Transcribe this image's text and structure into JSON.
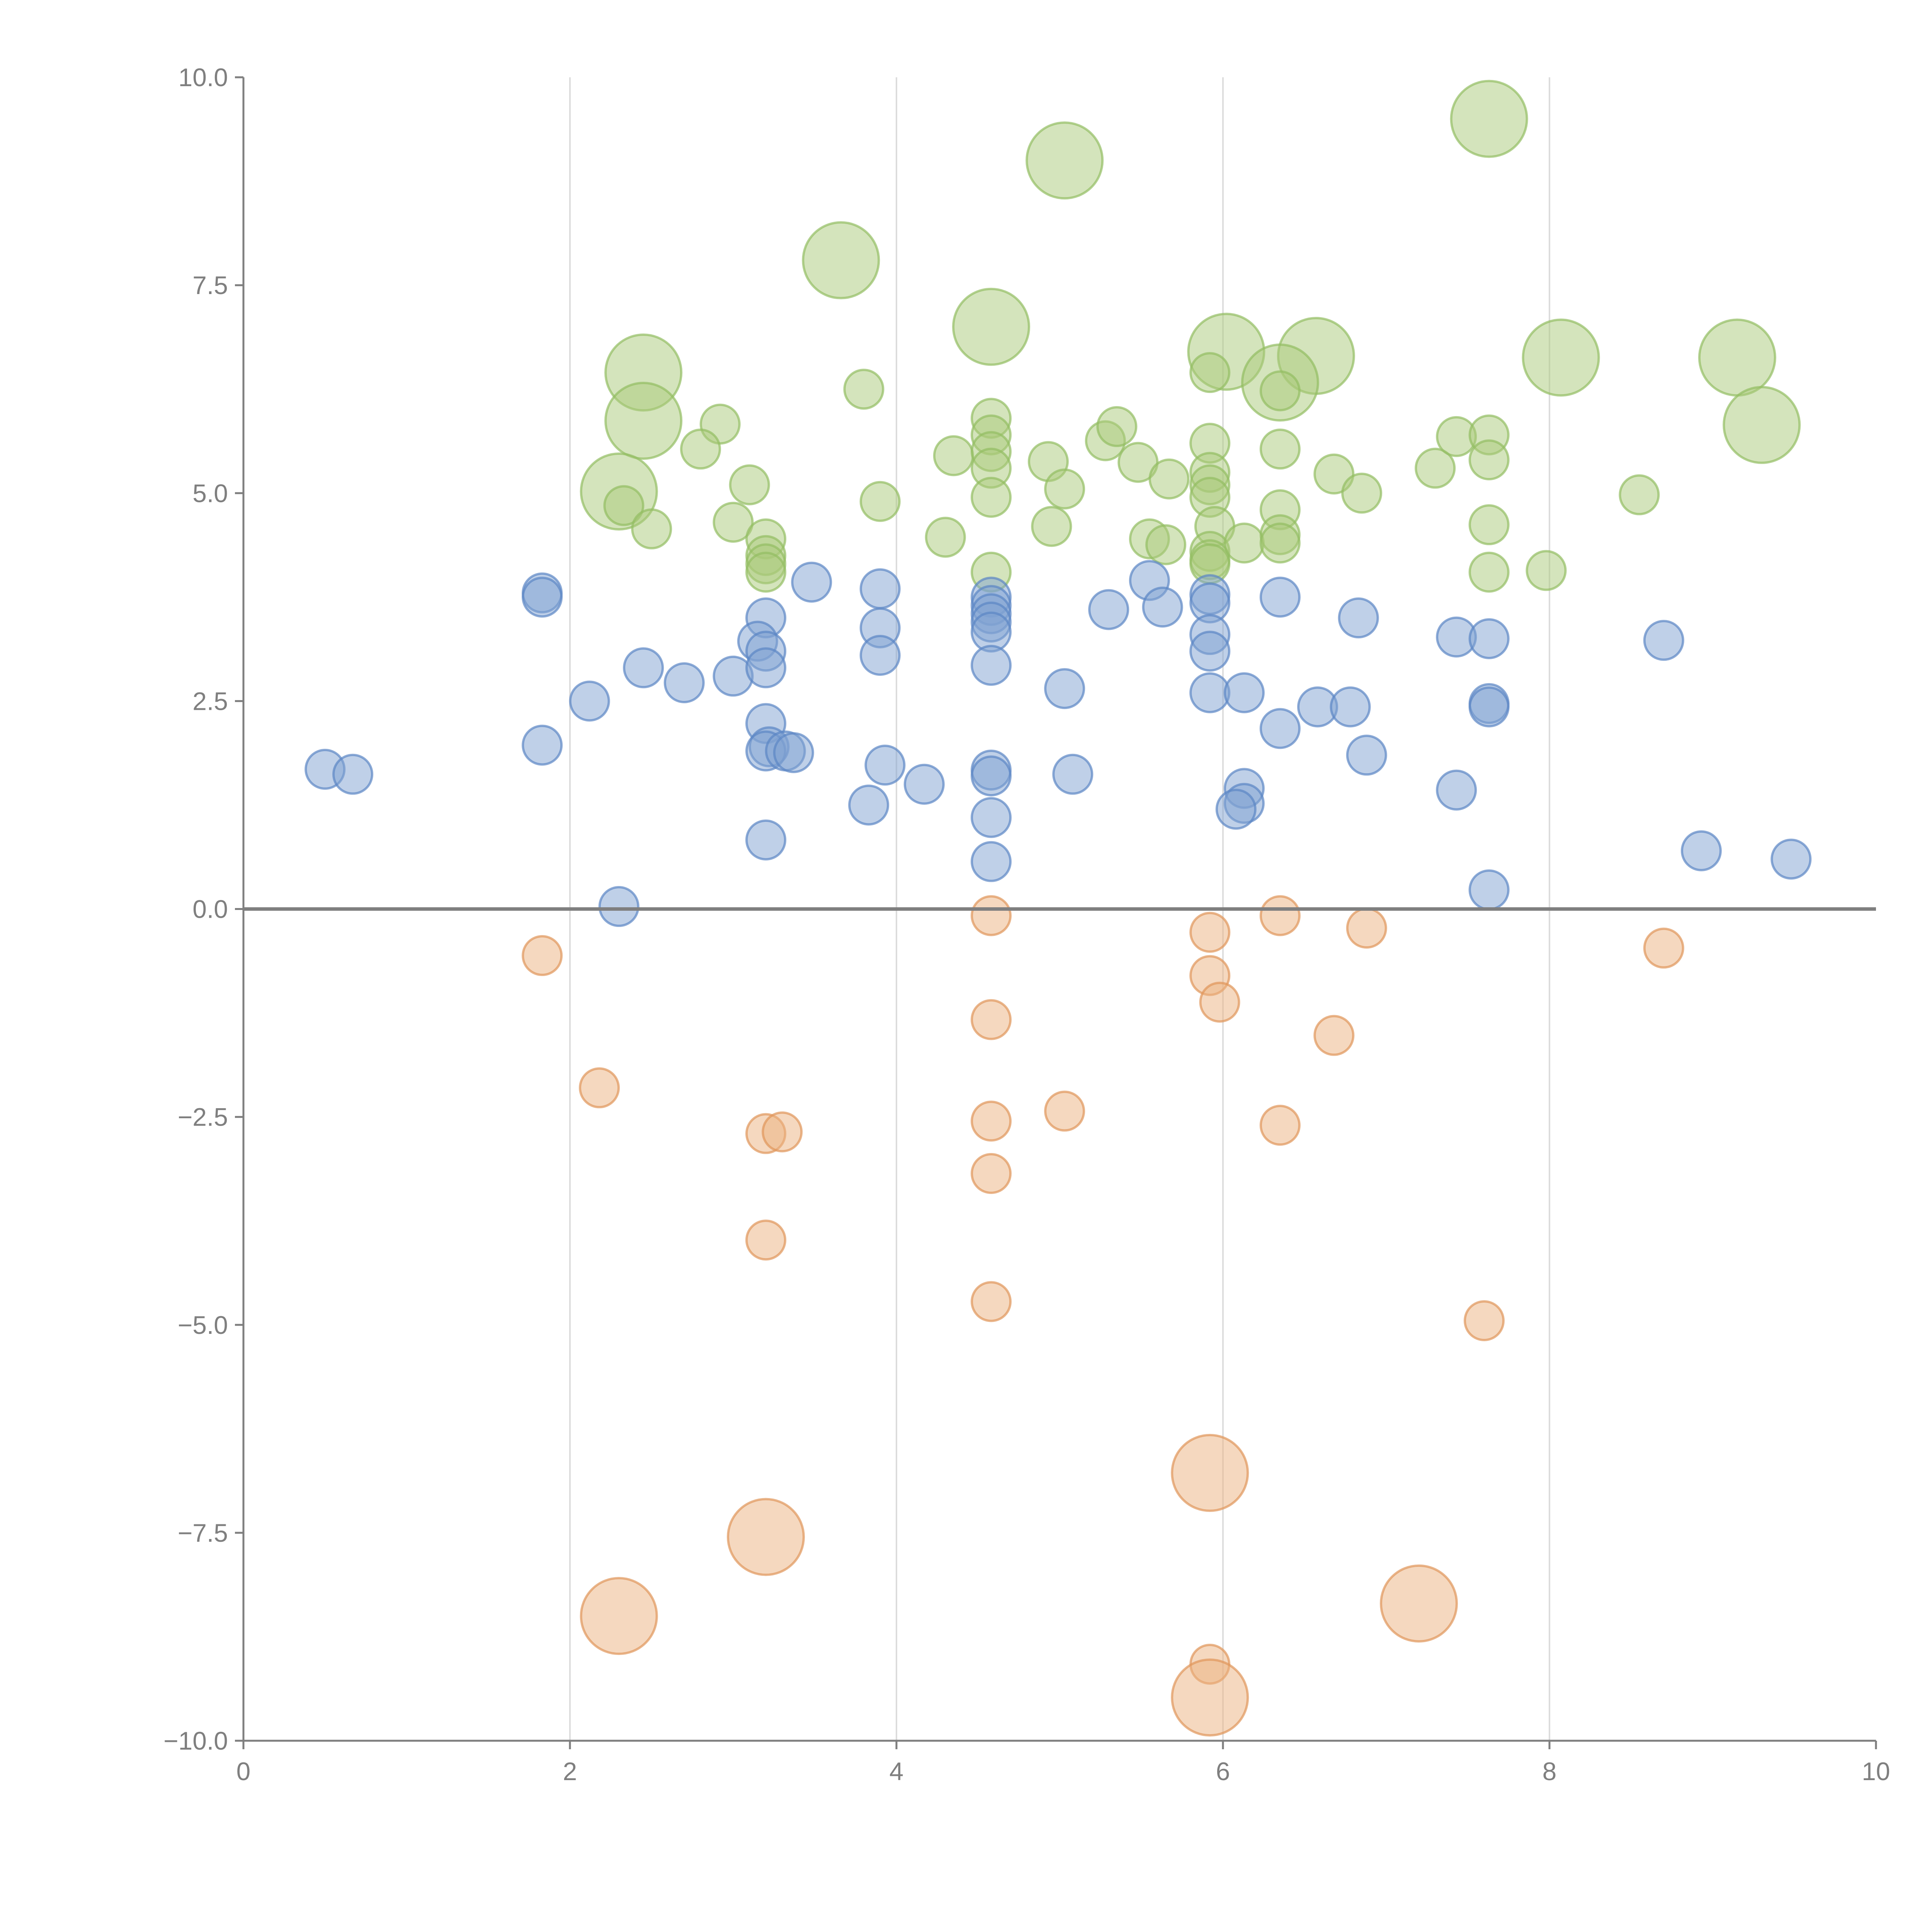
{
  "chart_data": {
    "type": "scatter",
    "xlim": [
      0,
      10
    ],
    "ylim": [
      -10,
      10
    ],
    "x_ticks": [
      0,
      2,
      4,
      6,
      8,
      10
    ],
    "y_ticks": [
      -10,
      -7.5,
      -5,
      -2.5,
      0,
      2.5,
      5,
      7.5,
      10
    ],
    "x_tick_labels": [
      "0",
      "2",
      "4",
      "6",
      "8",
      "10"
    ],
    "y_tick_labels": [
      "−10.0",
      "−7.5",
      "−5.0",
      "−2.5",
      "0.0",
      "2.5",
      "5.0",
      "7.5",
      "10.0"
    ],
    "vertical_grid_at": [
      2,
      4,
      6,
      8
    ],
    "reference_line_y": 0,
    "grid": true,
    "legend": "none",
    "series": [
      {
        "name": "green",
        "color": "#a9c97a",
        "stroke": "#93bd63",
        "points": [
          [
            7.63,
            9.5,
            "L"
          ],
          [
            5.03,
            9.0,
            "L"
          ],
          [
            3.66,
            7.8,
            "L"
          ],
          [
            4.58,
            7.0,
            "L"
          ],
          [
            2.45,
            6.45,
            "L"
          ],
          [
            2.45,
            5.87,
            "L"
          ],
          [
            2.3,
            5.02,
            "L"
          ],
          [
            6.02,
            6.7,
            "L"
          ],
          [
            6.57,
            6.65,
            "L"
          ],
          [
            6.35,
            6.33,
            "L"
          ],
          [
            8.07,
            6.63,
            "L"
          ],
          [
            9.15,
            6.63,
            "L"
          ],
          [
            9.3,
            5.82,
            "L"
          ],
          [
            3.8,
            6.25,
            "S"
          ],
          [
            2.92,
            5.83,
            "S"
          ],
          [
            2.8,
            5.53,
            "S"
          ],
          [
            3.1,
            5.1,
            "S"
          ],
          [
            2.33,
            4.85,
            "S"
          ],
          [
            2.5,
            4.57,
            "S"
          ],
          [
            3.0,
            4.65,
            "S"
          ],
          [
            3.2,
            4.45,
            "S"
          ],
          [
            3.2,
            4.25,
            "S"
          ],
          [
            3.2,
            4.15,
            "S"
          ],
          [
            3.2,
            4.05,
            "S"
          ],
          [
            3.9,
            4.9,
            "S"
          ],
          [
            4.35,
            5.45,
            "S"
          ],
          [
            4.3,
            4.47,
            "S"
          ],
          [
            4.58,
            5.9,
            "S"
          ],
          [
            4.58,
            5.7,
            "S"
          ],
          [
            4.58,
            5.5,
            "S"
          ],
          [
            4.58,
            5.3,
            "S"
          ],
          [
            4.58,
            4.95,
            "S"
          ],
          [
            4.58,
            4.05,
            "S"
          ],
          [
            4.93,
            5.38,
            "S"
          ],
          [
            5.03,
            5.05,
            "S"
          ],
          [
            4.95,
            4.6,
            "S"
          ],
          [
            5.28,
            5.63,
            "S"
          ],
          [
            5.35,
            5.8,
            "S"
          ],
          [
            5.48,
            5.37,
            "S"
          ],
          [
            5.67,
            5.17,
            "S"
          ],
          [
            5.55,
            4.45,
            "S"
          ],
          [
            5.65,
            4.38,
            "S"
          ],
          [
            5.92,
            6.45,
            "S"
          ],
          [
            5.92,
            5.6,
            "S"
          ],
          [
            5.92,
            5.25,
            "S"
          ],
          [
            5.92,
            5.1,
            "S"
          ],
          [
            5.92,
            4.95,
            "S"
          ],
          [
            5.95,
            4.6,
            "S"
          ],
          [
            5.92,
            4.3,
            "S"
          ],
          [
            5.92,
            4.2,
            "S"
          ],
          [
            5.92,
            4.15,
            "S"
          ],
          [
            6.13,
            4.4,
            "S"
          ],
          [
            6.35,
            6.23,
            "S"
          ],
          [
            6.35,
            5.53,
            "S"
          ],
          [
            6.35,
            4.8,
            "S"
          ],
          [
            6.35,
            4.5,
            "S"
          ],
          [
            6.35,
            4.4,
            "S"
          ],
          [
            6.68,
            5.23,
            "S"
          ],
          [
            6.85,
            5.0,
            "S"
          ],
          [
            7.3,
            5.3,
            "S"
          ],
          [
            7.43,
            5.68,
            "S"
          ],
          [
            7.63,
            5.7,
            "S"
          ],
          [
            7.63,
            5.4,
            "S"
          ],
          [
            7.63,
            4.62,
            "S"
          ],
          [
            7.63,
            4.05,
            "S"
          ],
          [
            7.98,
            4.07,
            "S"
          ],
          [
            8.55,
            4.98,
            "S"
          ]
        ]
      },
      {
        "name": "blue",
        "color": "#7fa1d1",
        "stroke": "#5b86c4",
        "points": [
          [
            0.5,
            1.68,
            "S"
          ],
          [
            0.67,
            1.62,
            "S"
          ],
          [
            1.83,
            3.8,
            "S"
          ],
          [
            1.83,
            3.75,
            "S"
          ],
          [
            1.83,
            1.97,
            "S"
          ],
          [
            2.12,
            2.5,
            "S"
          ],
          [
            2.3,
            0.03,
            "S"
          ],
          [
            2.45,
            2.9,
            "S"
          ],
          [
            2.7,
            2.72,
            "S"
          ],
          [
            3.0,
            2.8,
            "S"
          ],
          [
            3.2,
            3.5,
            "S"
          ],
          [
            3.15,
            3.22,
            "S"
          ],
          [
            3.2,
            3.1,
            "S"
          ],
          [
            3.2,
            2.9,
            "S"
          ],
          [
            3.2,
            2.23,
            "S"
          ],
          [
            3.22,
            1.95,
            "S"
          ],
          [
            3.2,
            1.9,
            "S"
          ],
          [
            3.32,
            1.9,
            "S"
          ],
          [
            3.37,
            1.88,
            "S"
          ],
          [
            3.2,
            0.83,
            "S"
          ],
          [
            3.48,
            3.93,
            "S"
          ],
          [
            3.83,
            1.25,
            "S"
          ],
          [
            3.9,
            3.85,
            "S"
          ],
          [
            3.9,
            3.38,
            "S"
          ],
          [
            3.9,
            3.05,
            "S"
          ],
          [
            3.93,
            1.73,
            "S"
          ],
          [
            4.17,
            1.5,
            "S"
          ],
          [
            4.58,
            3.75,
            "S"
          ],
          [
            4.58,
            3.65,
            "S"
          ],
          [
            4.58,
            3.55,
            "S"
          ],
          [
            4.58,
            3.45,
            "S"
          ],
          [
            4.58,
            3.33,
            "S"
          ],
          [
            4.58,
            2.93,
            "S"
          ],
          [
            4.58,
            1.67,
            "S"
          ],
          [
            4.58,
            1.6,
            "S"
          ],
          [
            4.58,
            1.1,
            "S"
          ],
          [
            4.58,
            0.57,
            "S"
          ],
          [
            5.03,
            2.65,
            "S"
          ],
          [
            5.08,
            1.62,
            "S"
          ],
          [
            5.3,
            3.6,
            "S"
          ],
          [
            5.55,
            3.95,
            "S"
          ],
          [
            5.63,
            3.63,
            "S"
          ],
          [
            5.92,
            3.78,
            "S"
          ],
          [
            5.92,
            3.68,
            "S"
          ],
          [
            5.92,
            3.3,
            "S"
          ],
          [
            5.92,
            3.1,
            "S"
          ],
          [
            5.92,
            2.6,
            "S"
          ],
          [
            6.13,
            2.6,
            "S"
          ],
          [
            6.13,
            1.45,
            "S"
          ],
          [
            6.13,
            1.27,
            "S"
          ],
          [
            6.08,
            1.2,
            "S"
          ],
          [
            6.35,
            3.75,
            "S"
          ],
          [
            6.35,
            2.17,
            "S"
          ],
          [
            6.58,
            2.43,
            "S"
          ],
          [
            6.78,
            2.43,
            "S"
          ],
          [
            6.83,
            3.5,
            "S"
          ],
          [
            6.88,
            1.85,
            "S"
          ],
          [
            7.43,
            3.27,
            "S"
          ],
          [
            7.43,
            1.43,
            "S"
          ],
          [
            7.63,
            3.25,
            "S"
          ],
          [
            7.63,
            2.47,
            "S"
          ],
          [
            7.63,
            2.43,
            "S"
          ],
          [
            7.63,
            0.23,
            "S"
          ],
          [
            8.7,
            3.23,
            "S"
          ],
          [
            8.93,
            0.7,
            "S"
          ],
          [
            9.48,
            0.6,
            "S"
          ]
        ]
      },
      {
        "name": "orange",
        "color": "#ebb27f",
        "stroke": "#e0955a",
        "points": [
          [
            1.83,
            -0.56,
            "S"
          ],
          [
            2.18,
            -2.15,
            "S"
          ],
          [
            3.2,
            -2.7,
            "S"
          ],
          [
            3.3,
            -2.68,
            "S"
          ],
          [
            3.2,
            -3.98,
            "S"
          ],
          [
            4.58,
            -0.08,
            "S"
          ],
          [
            4.58,
            -1.33,
            "S"
          ],
          [
            4.58,
            -2.55,
            "S"
          ],
          [
            4.58,
            -3.18,
            "S"
          ],
          [
            4.58,
            -4.72,
            "S"
          ],
          [
            5.03,
            -2.43,
            "S"
          ],
          [
            5.92,
            -0.28,
            "S"
          ],
          [
            5.92,
            -0.8,
            "S"
          ],
          [
            5.98,
            -1.12,
            "S"
          ],
          [
            5.92,
            -9.08,
            "S"
          ],
          [
            6.35,
            -0.08,
            "S"
          ],
          [
            6.35,
            -2.6,
            "S"
          ],
          [
            6.88,
            -0.23,
            "S"
          ],
          [
            6.68,
            -1.52,
            "S"
          ],
          [
            7.6,
            -4.95,
            "S"
          ],
          [
            8.7,
            -0.47,
            "S"
          ],
          [
            2.3,
            -8.5,
            "L"
          ],
          [
            3.2,
            -7.55,
            "L"
          ],
          [
            5.92,
            -6.78,
            "L"
          ],
          [
            5.92,
            -9.48,
            "L"
          ],
          [
            7.2,
            -8.35,
            "L"
          ]
        ]
      }
    ]
  }
}
